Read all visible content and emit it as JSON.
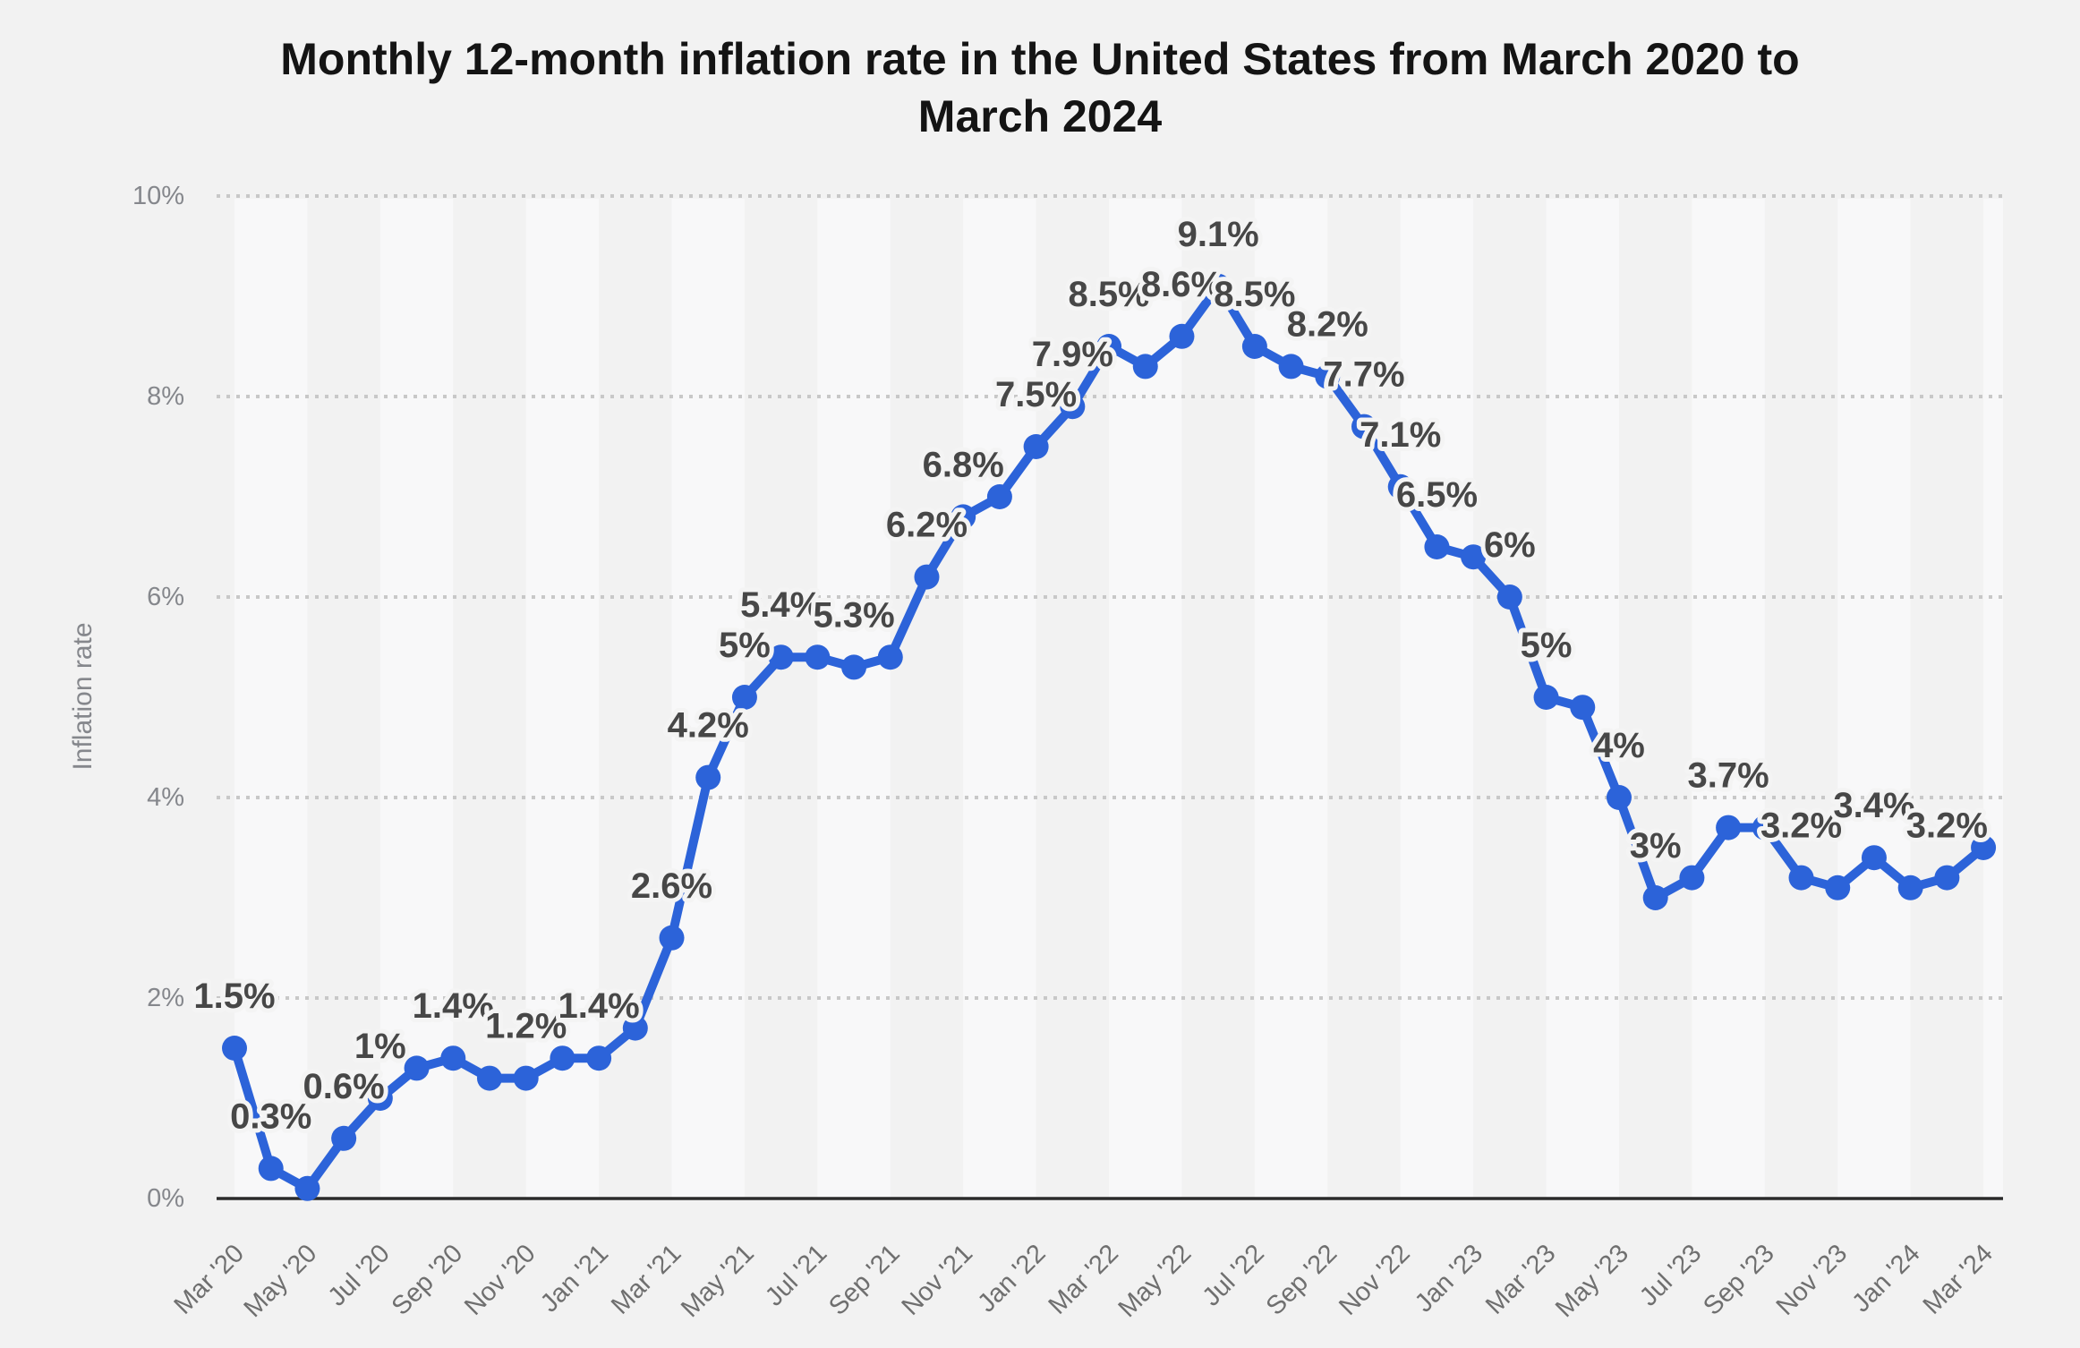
{
  "title": {
    "line1": "Monthly 12-month inflation rate in the United States from March 2020 to",
    "line2": "March 2024"
  },
  "y_axis": {
    "label": "Inflation rate",
    "ticks": [
      "0%",
      "2%",
      "4%",
      "6%",
      "8%",
      "10%"
    ]
  },
  "chart_data": {
    "type": "line",
    "title": "Monthly 12-month inflation rate in the United States from March 2020 to March 2024",
    "xlabel": "",
    "ylabel": "Inflation rate",
    "ylim": [
      0,
      10
    ],
    "y_ticks": [
      "0%",
      "2%",
      "4%",
      "6%",
      "8%",
      "10%"
    ],
    "grid": "dotted horizontal gridlines, alternating vertical background bands",
    "legend_position": "none",
    "x": [
      "Mar '20",
      "Apr '20",
      "May '20",
      "Jun '20",
      "Jul '20",
      "Aug '20",
      "Sep '20",
      "Oct '20",
      "Nov '20",
      "Dec '20",
      "Jan '21",
      "Feb '21",
      "Mar '21",
      "Apr '21",
      "May '21",
      "Jun '21",
      "Jul '21",
      "Aug '21",
      "Sep '21",
      "Oct '21",
      "Nov '21",
      "Dec '21",
      "Jan '22",
      "Feb '22",
      "Mar '22",
      "Apr '22",
      "May '22",
      "Jun '22",
      "Jul '22",
      "Aug '22",
      "Sep '22",
      "Oct '22",
      "Nov '22",
      "Dec '22",
      "Jan '23",
      "Feb '23",
      "Mar '23",
      "Apr '23",
      "May '23",
      "Jun '23",
      "Jul '23",
      "Aug '23",
      "Sep '23",
      "Oct '23",
      "Nov '23",
      "Dec '23",
      "Jan '24",
      "Feb '24",
      "Mar '24"
    ],
    "x_tick_labels": [
      "Mar '20",
      "May '20",
      "Jul '20",
      "Sep '20",
      "Nov '20",
      "Jan '21",
      "Mar '21",
      "May '21",
      "Jul '21",
      "Sep '21",
      "Nov '21",
      "Jan '22",
      "Mar '22",
      "May '22",
      "Jul '22",
      "Sep '22",
      "Nov '22",
      "Jan '23",
      "Mar '23",
      "May '23",
      "Jul '23",
      "Sep '23",
      "Nov '23",
      "Jan '24",
      "Mar '24"
    ],
    "series": [
      {
        "name": "Inflation rate",
        "color": "#2c63d9",
        "values": [
          1.5,
          0.3,
          0.1,
          0.6,
          1.0,
          1.3,
          1.4,
          1.2,
          1.2,
          1.4,
          1.4,
          1.7,
          2.6,
          4.2,
          5.0,
          5.4,
          5.4,
          5.3,
          5.4,
          6.2,
          6.8,
          7.0,
          7.5,
          7.9,
          8.5,
          8.3,
          8.6,
          9.1,
          8.5,
          8.3,
          8.2,
          7.7,
          7.1,
          6.5,
          6.4,
          6.0,
          5.0,
          4.9,
          4.0,
          3.0,
          3.2,
          3.7,
          3.7,
          3.2,
          3.1,
          3.4,
          3.1,
          3.2,
          3.5
        ],
        "point_labels": [
          "1.5%",
          "0.3%",
          null,
          "0.6%",
          "1%",
          null,
          "1.4%",
          null,
          "1.2%",
          null,
          "1.4%",
          null,
          "2.6%",
          "4.2%",
          "5%",
          "5.4%",
          null,
          "5.3%",
          null,
          "6.2%",
          "6.8%",
          null,
          "7.5%",
          "7.9%",
          "8.5%",
          null,
          "8.6%",
          "9.1%",
          "8.5%",
          null,
          "8.2%",
          "7.7%",
          "7.1%",
          "6.5%",
          null,
          "6%",
          "5%",
          null,
          "4%",
          "3%",
          null,
          "3.7%",
          null,
          "3.2%",
          null,
          "3.4%",
          null,
          "3.2%",
          null
        ]
      }
    ]
  },
  "colors": {
    "background": "#f2f2f2",
    "light_band": "#f8f8f9",
    "gridline": "#c8c8c8",
    "baseline": "#2b2b2b",
    "line": "#2c63d9",
    "point_label": "#474747",
    "axis_text": "#85878c"
  }
}
